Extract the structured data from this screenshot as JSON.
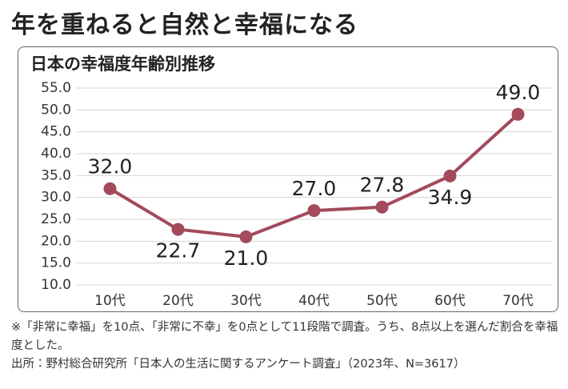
{
  "chart_data": {
    "type": "line",
    "title": "年を重ねると自然と幸福になる",
    "subtitle": "日本の幸福度年齢別推移",
    "note": "※「非常に幸福」を10点、「非常に不幸」を0点として11段階で調査。うち、8点以上を選んだ割合を幸福度とした。",
    "source": "出所：野村総合研究所「日本人の生活に関するアンケート調査」（2023年、N=3617）",
    "categories": [
      "10代",
      "20代",
      "30代",
      "40代",
      "50代",
      "60代",
      "70代"
    ],
    "values": [
      32.0,
      22.7,
      21.0,
      27.0,
      27.8,
      34.9,
      49.0
    ],
    "value_labels": [
      "32.0",
      "22.7",
      "21.0",
      "27.0",
      "27.8",
      "34.9",
      "49.0"
    ],
    "color": "#a34a5c",
    "ylim": [
      10,
      55
    ],
    "yticks": [
      {
        "value": 10,
        "label": "10.0"
      },
      {
        "value": 15,
        "label": "15.0"
      },
      {
        "value": 20,
        "label": "20.0"
      },
      {
        "value": 25,
        "label": "25.0"
      },
      {
        "value": 30,
        "label": "30.0"
      },
      {
        "value": 35,
        "label": "35.0"
      },
      {
        "value": 40,
        "label": "40.0"
      },
      {
        "value": 45,
        "label": "45.0"
      },
      {
        "value": 50,
        "label": "50.0"
      },
      {
        "value": 55,
        "label": "55.0"
      }
    ],
    "grid": true
  }
}
